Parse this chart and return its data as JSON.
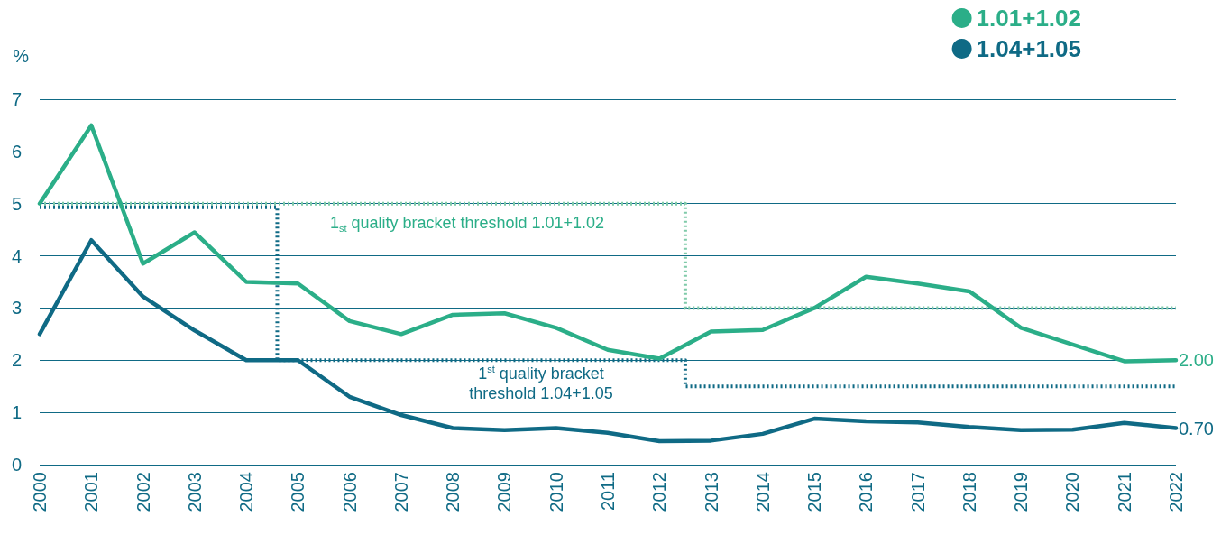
{
  "chart_data": {
    "type": "line",
    "ylabel": "%",
    "x": [
      2000,
      2001,
      2002,
      2003,
      2004,
      2005,
      2006,
      2007,
      2008,
      2009,
      2010,
      2011,
      2012,
      2013,
      2014,
      2015,
      2016,
      2017,
      2018,
      2019,
      2020,
      2021,
      2022
    ],
    "series": [
      {
        "name": "1.01+1.02",
        "color": "#2bae88",
        "values": [
          5.0,
          6.5,
          3.85,
          4.45,
          3.5,
          3.47,
          2.75,
          2.5,
          2.87,
          2.9,
          2.62,
          2.2,
          2.03,
          2.55,
          2.58,
          3.0,
          3.6,
          3.47,
          3.32,
          2.62,
          2.3,
          1.98,
          2.0
        ],
        "value_labels": [
          null,
          null,
          null,
          null,
          null,
          null,
          null,
          null,
          null,
          null,
          null,
          null,
          null,
          null,
          null,
          null,
          null,
          null,
          null,
          null,
          null,
          null,
          "2.00"
        ]
      },
      {
        "name": "1.04+1.05",
        "color": "#0f6a85",
        "values": [
          2.5,
          4.3,
          3.22,
          2.57,
          2.0,
          2.0,
          1.3,
          0.95,
          0.7,
          0.66,
          0.7,
          0.61,
          0.45,
          0.46,
          0.59,
          0.88,
          0.83,
          0.81,
          0.72,
          0.66,
          0.67,
          0.8,
          0.7
        ],
        "value_labels": [
          null,
          null,
          null,
          null,
          null,
          null,
          null,
          null,
          null,
          null,
          null,
          null,
          null,
          null,
          null,
          null,
          null,
          null,
          null,
          null,
          null,
          null,
          "0.70"
        ]
      },
      {
        "type": "line",
        "line_style": "dotted",
        "color": "#7fcaa9",
        "x": [
          2000,
          2012.5,
          2012.5,
          2022
        ],
        "values": [
          5.0,
          5.0,
          3.0,
          3.0
        ]
      },
      {
        "type": "line",
        "line_style": "dotted",
        "color": "#0f6a85",
        "x": [
          2000,
          2004.6,
          2004.6,
          2012.5,
          2012.5,
          2022
        ],
        "values": [
          4.93,
          4.93,
          2.0,
          2.0,
          1.5,
          1.5
        ]
      }
    ],
    "annotations": [
      "1$_{st}$ quality bracket threshold 1.01+1.02",
      "1$^{st}$ quality bracket\nthreshold 1.04+1.05"
    ],
    "xlim": [
      2000,
      2022
    ],
    "xticks": [
      2000,
      2001,
      2002,
      2003,
      2004,
      2005,
      2006,
      2007,
      2008,
      2009,
      2010,
      2011,
      2012,
      2013,
      2014,
      2015,
      2016,
      2017,
      2018,
      2019,
      2020,
      2021,
      2022
    ],
    "ylim": [
      0,
      7
    ],
    "yticks": [
      0,
      1,
      2,
      3,
      4,
      5,
      6,
      7
    ],
    "grid": "y",
    "legend": "top right",
    "marker": "none",
    "line_style": "solid"
  }
}
